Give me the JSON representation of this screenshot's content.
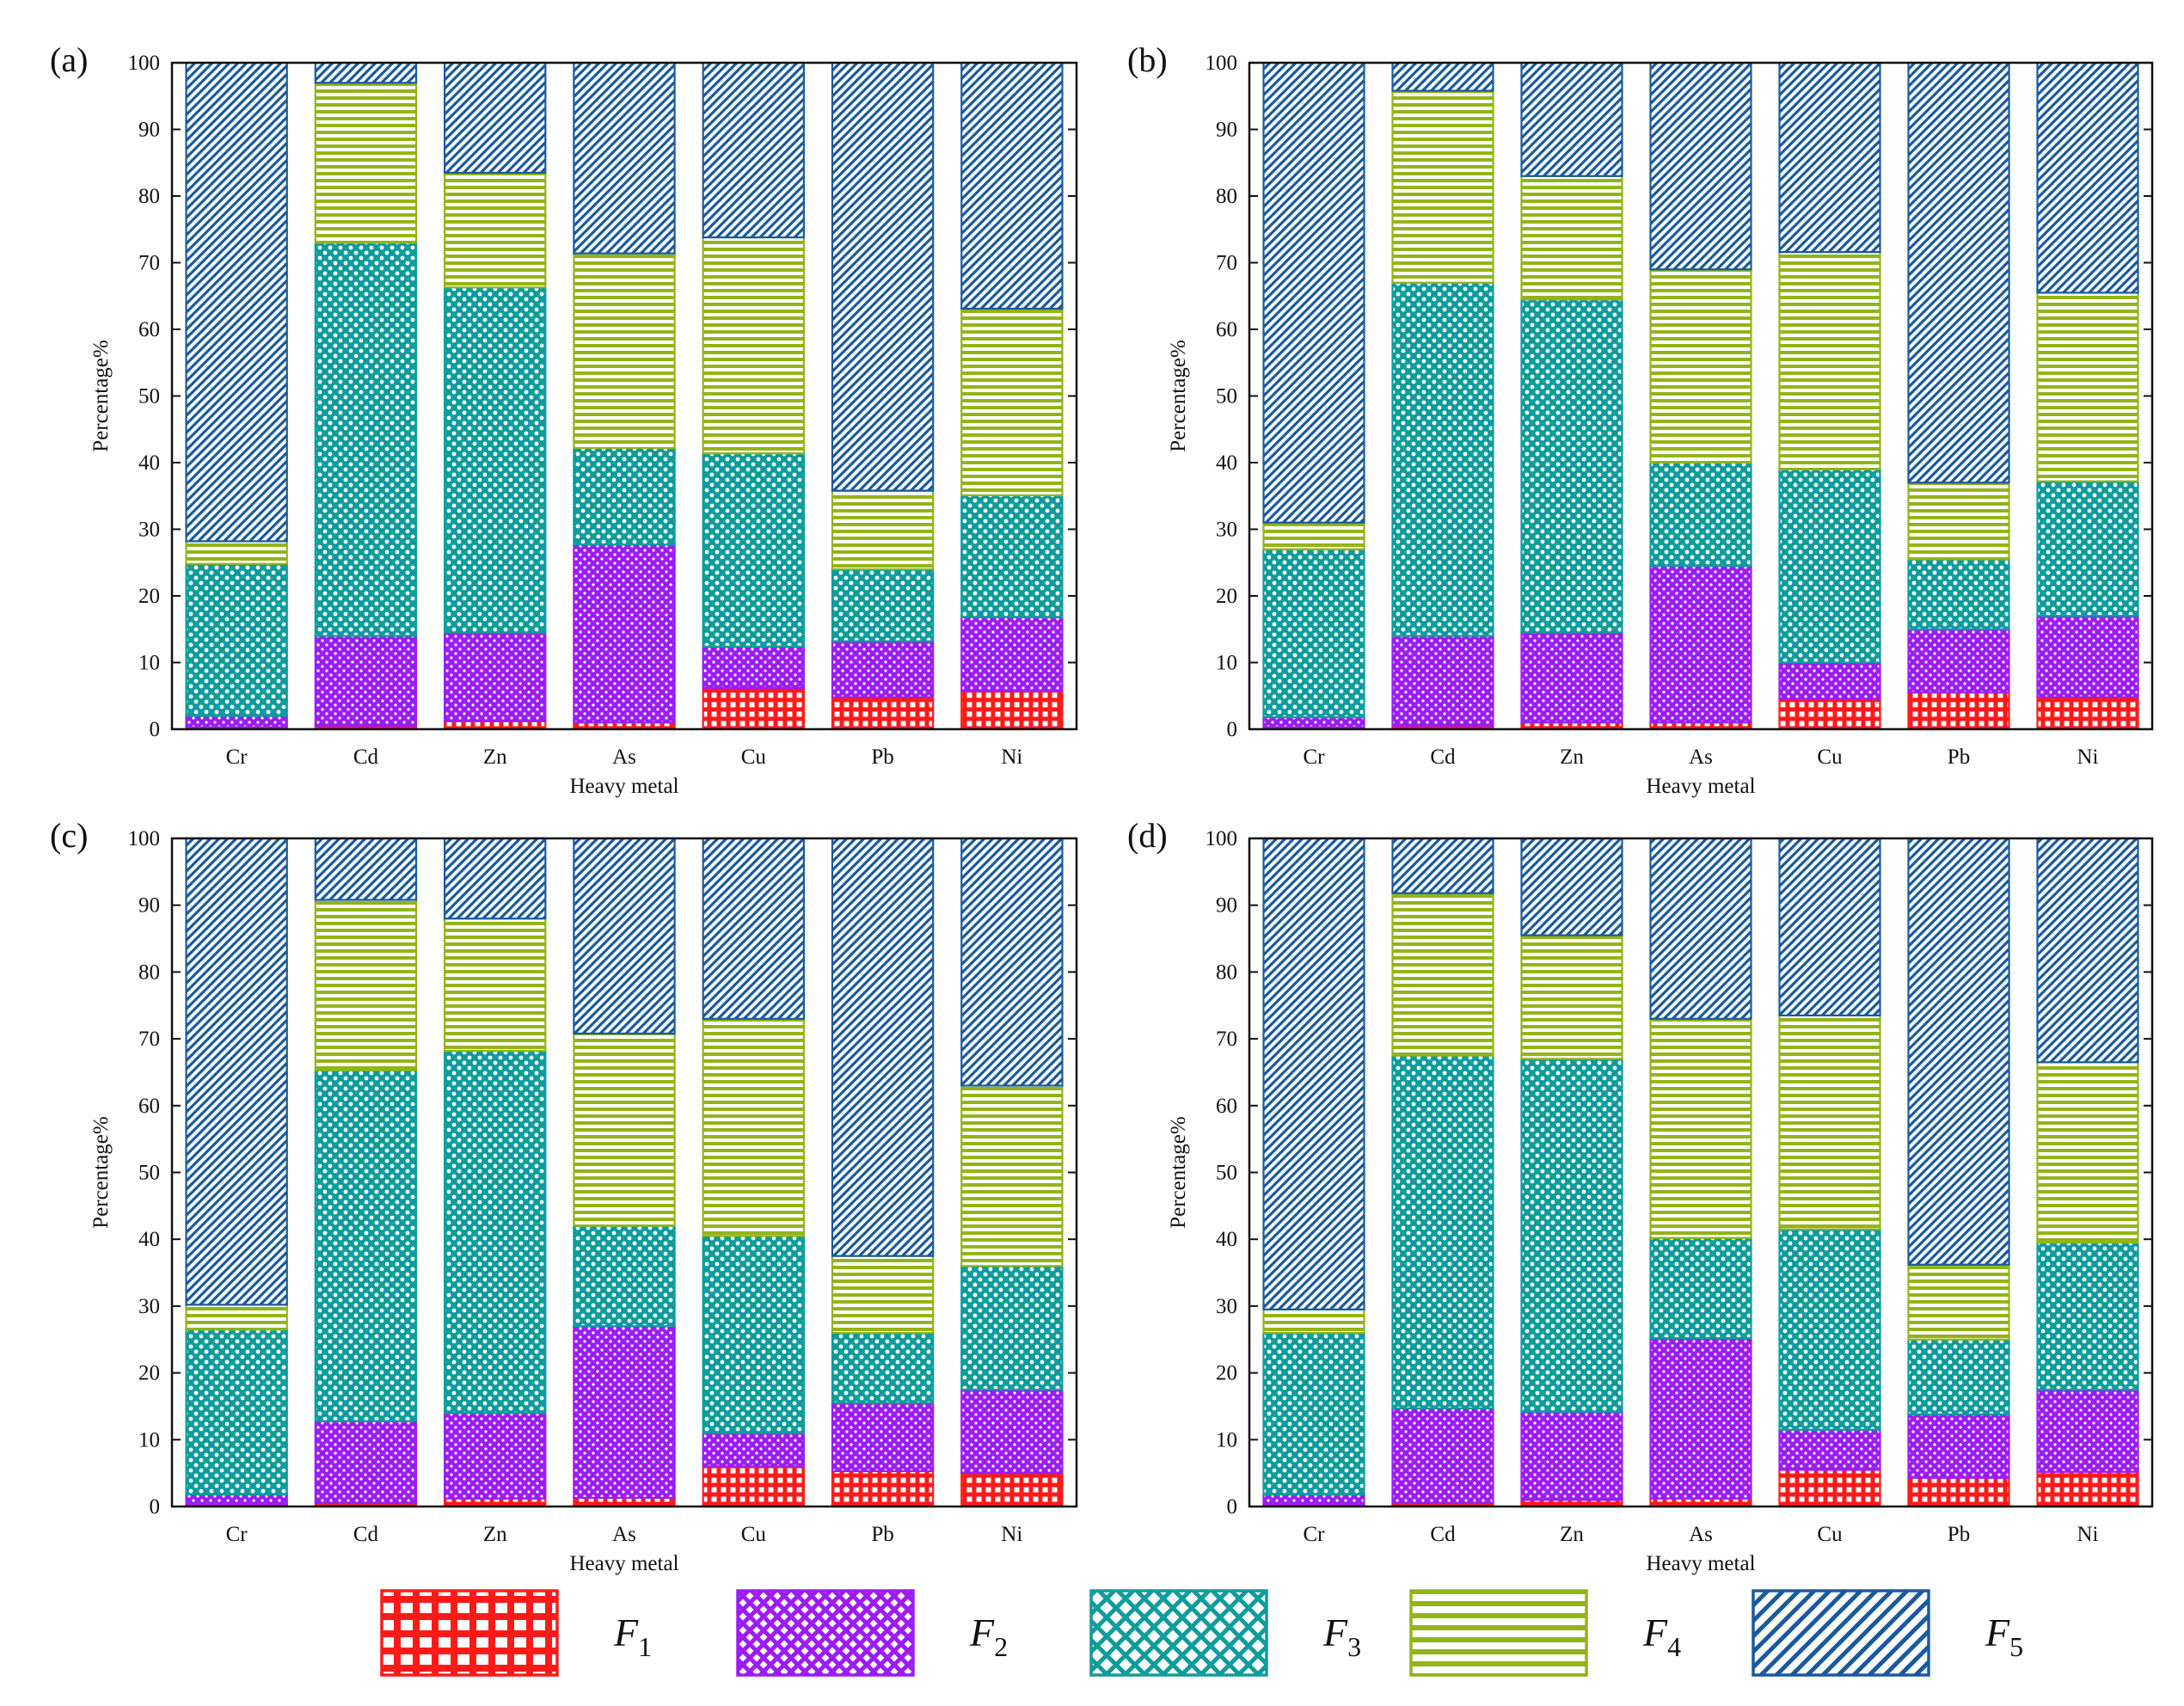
{
  "colors": {
    "F1": "#ff1a1a",
    "F2": "#9b1cf7",
    "F3": "#0e9c9c",
    "F4": "#93b418",
    "F5": "#1a5a9c"
  },
  "legend": [
    {
      "key": "F1",
      "label": "F",
      "sub": "1",
      "pattern": "grid"
    },
    {
      "key": "F2",
      "label": "F",
      "sub": "2",
      "pattern": "dots"
    },
    {
      "key": "F3",
      "label": "F",
      "sub": "3",
      "pattern": "cross"
    },
    {
      "key": "F4",
      "label": "F",
      "sub": "4",
      "pattern": "horizontal"
    },
    {
      "key": "F5",
      "label": "F",
      "sub": "5",
      "pattern": "diagonal"
    }
  ],
  "chart_data": [
    {
      "type": "bar",
      "stacked": true,
      "panel": "(a)",
      "xlabel": "Heavy metal",
      "ylabel": "Percentage%",
      "ylim": [
        0,
        100
      ],
      "yticks": [
        0,
        10,
        20,
        30,
        40,
        50,
        60,
        70,
        80,
        90,
        100
      ],
      "categories": [
        "Cr",
        "Cd",
        "Zn",
        "As",
        "Cu",
        "Pb",
        "Ni"
      ],
      "series": [
        {
          "name": "F1",
          "values": [
            0.3,
            0.5,
            1.2,
            1.0,
            6.2,
            4.8,
            5.7
          ]
        },
        {
          "name": "F2",
          "values": [
            1.7,
            13.5,
            13.3,
            26.7,
            6.2,
            8.4,
            11.1
          ]
        },
        {
          "name": "F3",
          "values": [
            22.8,
            59.0,
            51.8,
            14.5,
            29.0,
            10.8,
            18.3
          ]
        },
        {
          "name": "F4",
          "values": [
            3.4,
            24.0,
            17.2,
            29.2,
            32.4,
            11.8,
            28.0
          ]
        },
        {
          "name": "F5",
          "values": [
            71.8,
            3.0,
            16.5,
            28.6,
            26.2,
            64.2,
            36.9
          ]
        }
      ]
    },
    {
      "type": "bar",
      "stacked": true,
      "panel": "(b)",
      "xlabel": "Heavy metal",
      "ylabel": "Percentage%",
      "ylim": [
        0,
        100
      ],
      "yticks": [
        0,
        10,
        20,
        30,
        40,
        50,
        60,
        70,
        80,
        90,
        100
      ],
      "categories": [
        "Cr",
        "Cd",
        "Zn",
        "As",
        "Cu",
        "Pb",
        "Ni"
      ],
      "series": [
        {
          "name": "F1",
          "values": [
            0.3,
            0.5,
            1.0,
            1.0,
            4.5,
            5.5,
            4.8
          ]
        },
        {
          "name": "F2",
          "values": [
            1.5,
            13.5,
            13.5,
            23.5,
            5.5,
            9.5,
            12.2
          ]
        },
        {
          "name": "F3",
          "values": [
            25.2,
            53.0,
            50.0,
            15.5,
            29.0,
            10.5,
            20.2
          ]
        },
        {
          "name": "F4",
          "values": [
            4.0,
            28.8,
            18.5,
            29.0,
            32.6,
            11.5,
            28.3
          ]
        },
        {
          "name": "F5",
          "values": [
            69.0,
            4.2,
            17.0,
            31.0,
            28.4,
            63.0,
            34.5
          ]
        }
      ]
    },
    {
      "type": "bar",
      "stacked": true,
      "panel": "(c)",
      "xlabel": "Heavy metal",
      "ylabel": "Percentage%",
      "ylim": [
        0,
        100
      ],
      "yticks": [
        0,
        10,
        20,
        30,
        40,
        50,
        60,
        70,
        80,
        90,
        100
      ],
      "categories": [
        "Cr",
        "Cd",
        "Zn",
        "As",
        "Cu",
        "Pb",
        "Ni"
      ],
      "series": [
        {
          "name": "F1",
          "values": [
            0.3,
            0.5,
            1.2,
            1.3,
            6.0,
            5.3,
            5.0
          ]
        },
        {
          "name": "F2",
          "values": [
            1.5,
            12.3,
            12.8,
            25.7,
            5.0,
            10.2,
            12.5
          ]
        },
        {
          "name": "F3",
          "values": [
            24.7,
            52.5,
            54.2,
            15.0,
            29.5,
            10.5,
            18.5
          ]
        },
        {
          "name": "F4",
          "values": [
            3.7,
            25.5,
            19.8,
            28.8,
            32.5,
            11.5,
            27.0
          ]
        },
        {
          "name": "F5",
          "values": [
            69.8,
            9.2,
            12.0,
            29.2,
            27.0,
            62.5,
            37.0
          ]
        }
      ]
    },
    {
      "type": "bar",
      "stacked": true,
      "panel": "(d)",
      "xlabel": "Heavy metal",
      "ylabel": "Percentage%",
      "ylim": [
        0,
        100
      ],
      "yticks": [
        0,
        10,
        20,
        30,
        40,
        50,
        60,
        70,
        80,
        90,
        100
      ],
      "categories": [
        "Cr",
        "Cd",
        "Zn",
        "As",
        "Cu",
        "Pb",
        "Ni"
      ],
      "series": [
        {
          "name": "F1",
          "values": [
            0.3,
            0.5,
            1.0,
            1.2,
            5.5,
            4.3,
            5.2
          ]
        },
        {
          "name": "F2",
          "values": [
            1.5,
            14.2,
            13.2,
            24.0,
            6.0,
            9.5,
            12.3
          ]
        },
        {
          "name": "F3",
          "values": [
            24.2,
            52.8,
            52.8,
            15.0,
            30.0,
            11.2,
            22.0
          ]
        },
        {
          "name": "F4",
          "values": [
            3.5,
            24.3,
            18.5,
            32.8,
            32.0,
            11.2,
            27.0
          ]
        },
        {
          "name": "F5",
          "values": [
            70.5,
            8.2,
            14.5,
            27.0,
            26.5,
            63.8,
            33.5
          ]
        }
      ]
    }
  ]
}
